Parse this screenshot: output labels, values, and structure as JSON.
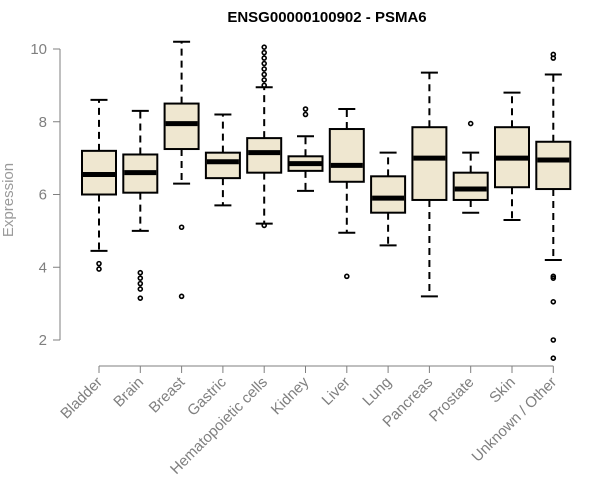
{
  "chart_data": {
    "type": "boxplot",
    "title": "ENSG00000100902 - PSMA6",
    "xlabel": "",
    "ylabel": "Expression",
    "ylim": [
      1.3,
      10.3
    ],
    "yticks": [
      2,
      4,
      6,
      8,
      10
    ],
    "categories": [
      "Bladder",
      "Brain",
      "Breast",
      "Gastric",
      "Hematopoietic cells",
      "Kidney",
      "Liver",
      "Lung",
      "Pancreas",
      "Prostate",
      "Skin",
      "Unknown / Other"
    ],
    "boxes": [
      {
        "category": "Bladder",
        "whisker_low": 4.45,
        "q1": 6.0,
        "median": 6.55,
        "q3": 7.2,
        "whisker_high": 8.6,
        "outliers": [
          4.1,
          3.95
        ]
      },
      {
        "category": "Brain",
        "whisker_low": 5.0,
        "q1": 6.05,
        "median": 6.6,
        "q3": 7.1,
        "whisker_high": 8.3,
        "outliers": [
          3.85,
          3.7,
          3.55,
          3.4,
          3.15
        ]
      },
      {
        "category": "Breast",
        "whisker_low": 6.3,
        "q1": 7.25,
        "median": 7.95,
        "q3": 8.5,
        "whisker_high": 10.2,
        "outliers": [
          5.1,
          3.2
        ]
      },
      {
        "category": "Gastric",
        "whisker_low": 5.7,
        "q1": 6.45,
        "median": 6.9,
        "q3": 7.15,
        "whisker_high": 8.2,
        "outliers": []
      },
      {
        "category": "Hematopoietic cells",
        "whisker_low": 5.2,
        "q1": 6.6,
        "median": 7.15,
        "q3": 7.55,
        "whisker_high": 8.95,
        "outliers": [
          10.05,
          9.9,
          9.75,
          9.6,
          9.45,
          9.3,
          9.15,
          9.0,
          5.15
        ]
      },
      {
        "category": "Kidney",
        "whisker_low": 6.1,
        "q1": 6.65,
        "median": 6.85,
        "q3": 7.05,
        "whisker_high": 7.6,
        "outliers": [
          8.35,
          8.2
        ]
      },
      {
        "category": "Liver",
        "whisker_low": 4.95,
        "q1": 6.35,
        "median": 6.8,
        "q3": 7.8,
        "whisker_high": 8.35,
        "outliers": [
          3.75
        ]
      },
      {
        "category": "Lung",
        "whisker_low": 4.6,
        "q1": 5.5,
        "median": 5.9,
        "q3": 6.5,
        "whisker_high": 7.15,
        "outliers": []
      },
      {
        "category": "Pancreas",
        "whisker_low": 3.2,
        "q1": 5.85,
        "median": 7.0,
        "q3": 7.85,
        "whisker_high": 9.35,
        "outliers": []
      },
      {
        "category": "Prostate",
        "whisker_low": 5.5,
        "q1": 5.85,
        "median": 6.15,
        "q3": 6.6,
        "whisker_high": 7.15,
        "outliers": [
          7.95
        ]
      },
      {
        "category": "Skin",
        "whisker_low": 5.3,
        "q1": 6.2,
        "median": 7.0,
        "q3": 7.85,
        "whisker_high": 8.8,
        "outliers": []
      },
      {
        "category": "Unknown / Other",
        "whisker_low": 4.2,
        "q1": 6.15,
        "median": 6.95,
        "q3": 7.45,
        "whisker_high": 9.3,
        "outliers": [
          9.85,
          9.75,
          3.75,
          3.7,
          3.05,
          2.0,
          1.5
        ]
      }
    ]
  }
}
